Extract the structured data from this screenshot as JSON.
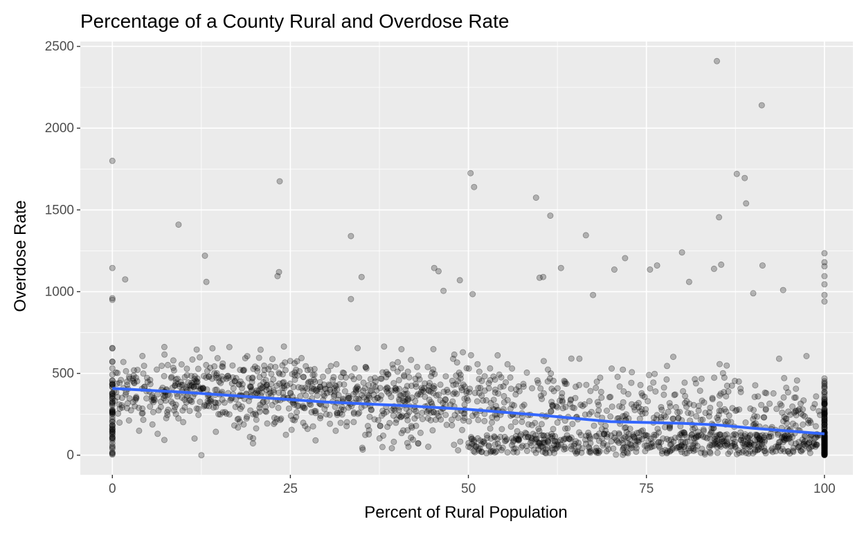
{
  "colors": {
    "panel_bg": "#ebebeb",
    "grid_major": "#ffffff",
    "point_fill": "#000000",
    "point_opacity": 0.25,
    "trend_line": "#3366ff",
    "tick_text": "#4d4d4d"
  },
  "chart_data": {
    "type": "scatter",
    "title": "Percentage of a County Rural and Overdose Rate",
    "xlabel": "Percent of Rural Population",
    "ylabel": "Overdose Rate",
    "xlim": [
      -4.5,
      104
    ],
    "ylim": [
      -120,
      2530
    ],
    "x_ticks": [
      0,
      25,
      50,
      75,
      100
    ],
    "x_tick_labels": [
      "0",
      "25",
      "50",
      "75",
      "100"
    ],
    "y_ticks": [
      0,
      500,
      1000,
      1500,
      2000,
      2500
    ],
    "y_tick_labels": [
      "0",
      "500",
      "1000",
      "1500",
      "2000",
      "2500"
    ],
    "grid": true,
    "legend": "none",
    "notable_points": [
      {
        "x": 0,
        "y": 1800
      },
      {
        "x": 0,
        "y": 1145
      },
      {
        "x": 0,
        "y": 960
      },
      {
        "x": 0,
        "y": 950
      },
      {
        "x": 1.8,
        "y": 1075
      },
      {
        "x": 9.3,
        "y": 1410
      },
      {
        "x": 13,
        "y": 1220
      },
      {
        "x": 13.2,
        "y": 1060
      },
      {
        "x": 23.5,
        "y": 1675
      },
      {
        "x": 23.4,
        "y": 1120
      },
      {
        "x": 23.2,
        "y": 1095
      },
      {
        "x": 33.5,
        "y": 1340
      },
      {
        "x": 35,
        "y": 1090
      },
      {
        "x": 33.5,
        "y": 955
      },
      {
        "x": 45.2,
        "y": 1145
      },
      {
        "x": 45.8,
        "y": 1125
      },
      {
        "x": 46.5,
        "y": 1005
      },
      {
        "x": 48.8,
        "y": 1070
      },
      {
        "x": 50.3,
        "y": 1725
      },
      {
        "x": 50.8,
        "y": 1640
      },
      {
        "x": 50.6,
        "y": 985
      },
      {
        "x": 59.5,
        "y": 1575
      },
      {
        "x": 60,
        "y": 1085
      },
      {
        "x": 60.5,
        "y": 1090
      },
      {
        "x": 61.5,
        "y": 1465
      },
      {
        "x": 63,
        "y": 1145
      },
      {
        "x": 66.5,
        "y": 1345
      },
      {
        "x": 67.5,
        "y": 980
      },
      {
        "x": 70.5,
        "y": 1135
      },
      {
        "x": 72,
        "y": 1205
      },
      {
        "x": 75.5,
        "y": 1135
      },
      {
        "x": 76.5,
        "y": 1160
      },
      {
        "x": 80,
        "y": 1240
      },
      {
        "x": 81,
        "y": 1060
      },
      {
        "x": 84.5,
        "y": 1140
      },
      {
        "x": 84.9,
        "y": 2410
      },
      {
        "x": 85.2,
        "y": 1455
      },
      {
        "x": 85.5,
        "y": 1165
      },
      {
        "x": 87.7,
        "y": 1720
      },
      {
        "x": 88.8,
        "y": 1695
      },
      {
        "x": 89,
        "y": 1540
      },
      {
        "x": 91.2,
        "y": 2140
      },
      {
        "x": 91.3,
        "y": 1160
      },
      {
        "x": 94.2,
        "y": 1010
      },
      {
        "x": 90,
        "y": 990
      },
      {
        "x": 100,
        "y": 1235
      },
      {
        "x": 100,
        "y": 1180
      },
      {
        "x": 100,
        "y": 1155
      },
      {
        "x": 100,
        "y": 1095
      },
      {
        "x": 100,
        "y": 1045
      },
      {
        "x": 100,
        "y": 980
      },
      {
        "x": 100,
        "y": 940
      },
      {
        "x": 12.5,
        "y": 0
      }
    ],
    "bulk_distribution": {
      "n_points": 2100,
      "x_range": [
        0,
        100
      ],
      "pile_at_x": 100,
      "description": "Dense cloud mostly between 0 and 800; low cluster near 0-120 beyond x=50"
    },
    "trend_line": {
      "type": "smooth",
      "x": [
        0,
        10,
        20,
        30,
        40,
        50,
        60,
        70,
        80,
        85,
        90,
        95,
        100
      ],
      "y": [
        408,
        385,
        355,
        325,
        305,
        280,
        245,
        205,
        195,
        185,
        165,
        148,
        130
      ]
    }
  }
}
